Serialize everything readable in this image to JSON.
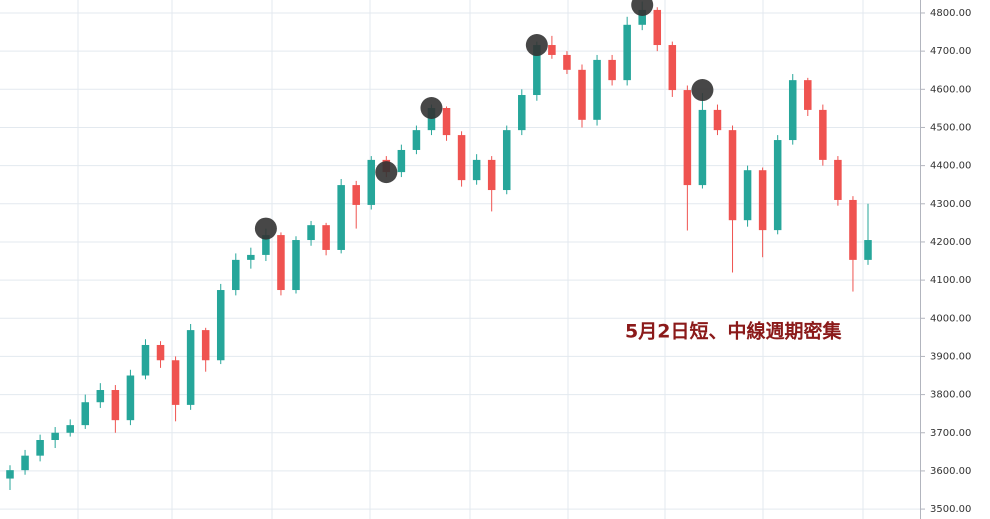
{
  "chart_data": {
    "type": "candlestick",
    "annotation": "5月2日短、中線週期密集",
    "up_color": "#26a69a",
    "down_color": "#ef5350",
    "marker_color": "#333333",
    "ylim": [
      3474,
      4834
    ],
    "yticks": [
      {
        "value": 3500,
        "label": "3500.00"
      },
      {
        "value": 3600,
        "label": "3600.00"
      },
      {
        "value": 3700,
        "label": "3700.00"
      },
      {
        "value": 3800,
        "label": "3800.00"
      },
      {
        "value": 3900,
        "label": "3900.00"
      },
      {
        "value": 4000,
        "label": "4000.00"
      },
      {
        "value": 4100,
        "label": "4100.00"
      },
      {
        "value": 4200,
        "label": "4200.00"
      },
      {
        "value": 4300,
        "label": "4300.00"
      },
      {
        "value": 4400,
        "label": "4400.00"
      },
      {
        "value": 4500,
        "label": "4500.00"
      },
      {
        "value": 4600,
        "label": "4600.00"
      },
      {
        "value": 4700,
        "label": "4700.00"
      },
      {
        "value": 4800,
        "label": "4800.00"
      }
    ],
    "grid": true,
    "open": [
      3580,
      3602,
      3640,
      3681,
      3700,
      3720,
      3780,
      3812,
      3733,
      3850,
      3930,
      3890,
      3773,
      3969,
      3890,
      4074,
      4153,
      4166,
      4218,
      4074,
      4205,
      4244,
      4179,
      4349,
      4297,
      4415,
      4383,
      4441,
      4493,
      4551,
      4480,
      4362,
      4415,
      4336,
      4493,
      4585,
      4716,
      4690,
      4651,
      4520,
      4677,
      4624,
      4769,
      4808,
      4716,
      4598,
      4349,
      4546,
      4493,
      4257,
      4388,
      4231,
      4467,
      4624,
      4546,
      4415,
      4310,
      4153
    ],
    "high": [
      3615,
      3655,
      3695,
      3715,
      3735,
      3800,
      3830,
      3825,
      3865,
      3945,
      3940,
      3900,
      3985,
      3975,
      4090,
      4170,
      4185,
      4235,
      4225,
      4215,
      4255,
      4250,
      4365,
      4360,
      4425,
      4425,
      4455,
      4505,
      4560,
      4555,
      4490,
      4430,
      4425,
      4505,
      4600,
      4725,
      4740,
      4700,
      4665,
      4690,
      4690,
      4790,
      4830,
      4815,
      4725,
      4610,
      4590,
      4560,
      4505,
      4400,
      4395,
      4480,
      4640,
      4630,
      4560,
      4425,
      4320,
      4300
    ],
    "low": [
      3550,
      3590,
      3625,
      3660,
      3690,
      3710,
      3765,
      3700,
      3720,
      3840,
      3870,
      3730,
      3760,
      3860,
      3880,
      4060,
      4130,
      4150,
      4060,
      4065,
      4190,
      4165,
      4170,
      4235,
      4285,
      4370,
      4370,
      4430,
      4480,
      4465,
      4345,
      4350,
      4280,
      4325,
      4480,
      4570,
      4680,
      4640,
      4500,
      4505,
      4610,
      4610,
      4755,
      4700,
      4580,
      4230,
      4340,
      4480,
      4120,
      4240,
      4160,
      4220,
      4455,
      4530,
      4400,
      4295,
      4070,
      4140
    ],
    "close": [
      3602,
      3640,
      3681,
      3700,
      3720,
      3780,
      3812,
      3733,
      3850,
      3930,
      3890,
      3773,
      3969,
      3890,
      4074,
      4153,
      4166,
      4218,
      4074,
      4205,
      4244,
      4179,
      4349,
      4297,
      4415,
      4383,
      4441,
      4493,
      4551,
      4480,
      4362,
      4415,
      4336,
      4493,
      4585,
      4716,
      4690,
      4651,
      4520,
      4677,
      4624,
      4769,
      4808,
      4716,
      4598,
      4349,
      4546,
      4493,
      4257,
      4388,
      4231,
      4467,
      4624,
      4546,
      4415,
      4310,
      4153,
      4205
    ],
    "markers": [
      {
        "index": 17,
        "value": 4235
      },
      {
        "index": 25,
        "value": 4383
      },
      {
        "index": 28,
        "value": 4551
      },
      {
        "index": 35,
        "value": 4716
      },
      {
        "index": 42,
        "value": 4821
      },
      {
        "index": 46,
        "value": 4598
      }
    ]
  }
}
